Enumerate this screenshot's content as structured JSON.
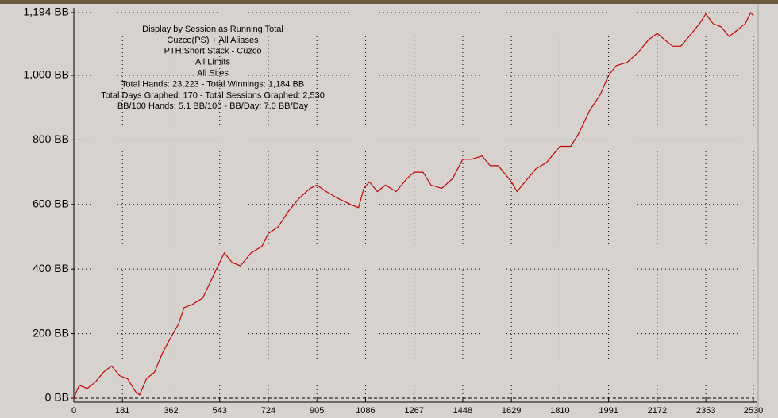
{
  "chart_data": {
    "type": "line",
    "annotations": [
      "Display by Session as Running Total",
      "Cuzco(PS) + All Aliases",
      "PTH:Short Stack - Cuzco",
      "All Limits",
      "All Sites",
      "Total Hands: 23,223 - Total Winnings: 1,184 BB",
      "Total Days Graphed: 170 - Total Sessions Graphed: 2,530",
      "BB/100 Hands: 5.1 BB/100 - BB/Day: 7.0 BB/Day"
    ],
    "x": [
      0,
      20,
      50,
      80,
      110,
      140,
      170,
      200,
      230,
      245,
      270,
      300,
      330,
      362,
      390,
      410,
      440,
      480,
      520,
      543,
      560,
      590,
      620,
      660,
      700,
      724,
      760,
      800,
      840,
      880,
      905,
      940,
      980,
      1030,
      1060,
      1080,
      1100,
      1130,
      1160,
      1200,
      1240,
      1267,
      1300,
      1330,
      1370,
      1410,
      1448,
      1480,
      1520,
      1550,
      1580,
      1610,
      1629,
      1650,
      1680,
      1720,
      1760,
      1810,
      1850,
      1880,
      1920,
      1960,
      1991,
      2020,
      2060,
      2100,
      2140,
      2172,
      2200,
      2230,
      2260,
      2300,
      2330,
      2353,
      2380,
      2410,
      2440,
      2470,
      2500,
      2520,
      2530
    ],
    "series": [
      {
        "color": "#cc0000",
        "values": [
          0,
          40,
          30,
          50,
          80,
          100,
          70,
          60,
          20,
          10,
          60,
          80,
          140,
          190,
          230,
          280,
          290,
          310,
          380,
          420,
          450,
          420,
          410,
          450,
          470,
          510,
          530,
          580,
          620,
          650,
          660,
          640,
          620,
          600,
          590,
          650,
          670,
          640,
          660,
          640,
          680,
          700,
          700,
          660,
          650,
          680,
          740,
          740,
          750,
          720,
          720,
          690,
          670,
          640,
          670,
          710,
          730,
          780,
          780,
          820,
          890,
          940,
          1000,
          1030,
          1040,
          1070,
          1110,
          1130,
          1110,
          1090,
          1090,
          1130,
          1160,
          1190,
          1160,
          1150,
          1120,
          1140,
          1160,
          1194,
          1184
        ]
      }
    ],
    "xlim": [
      0,
      2530
    ],
    "xticks": [
      0,
      181,
      362,
      543,
      724,
      905,
      1086,
      1267,
      1448,
      1629,
      1810,
      1991,
      2172,
      2353,
      2530
    ],
    "ylim": [
      0,
      1194
    ],
    "yticks": [
      {
        "value": 0,
        "label": "0 BB"
      },
      {
        "value": 200,
        "label": "200 BB"
      },
      {
        "value": 400,
        "label": "400 BB"
      },
      {
        "value": 600,
        "label": "600 BB"
      },
      {
        "value": 800,
        "label": "800 BB"
      },
      {
        "value": 1000,
        "label": "1,000 BB"
      },
      {
        "value": 1194,
        "label": "1,194 BB"
      }
    ],
    "grid": true
  }
}
